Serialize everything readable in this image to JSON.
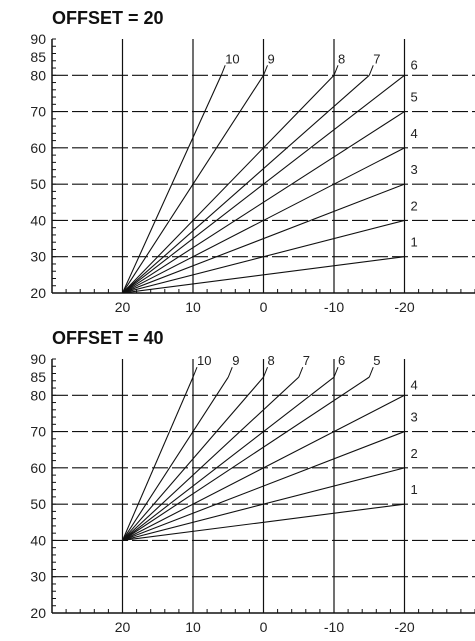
{
  "charts": [
    {
      "type": "line",
      "title": "OFFSET = 20",
      "y_ticks": [
        "90",
        "85",
        "80",
        "70",
        "60",
        "50",
        "40",
        "30",
        "20"
      ],
      "y_tick_values": [
        90,
        85,
        80,
        70,
        60,
        50,
        40,
        30,
        20
      ],
      "x_ticks": [
        "20",
        "10",
        "0",
        "-10",
        "-20"
      ],
      "x_tick_values": [
        20,
        10,
        0,
        -10,
        -20
      ],
      "xlim": [
        30,
        -30
      ],
      "ylim": [
        20,
        90
      ],
      "origin": {
        "x": 20,
        "y": 20
      },
      "series": [
        {
          "label": "1",
          "x": [
            20,
            -20
          ],
          "y": [
            20,
            30
          ]
        },
        {
          "label": "2",
          "x": [
            20,
            -20
          ],
          "y": [
            20,
            40
          ]
        },
        {
          "label": "3",
          "x": [
            20,
            -20
          ],
          "y": [
            20,
            50
          ]
        },
        {
          "label": "4",
          "x": [
            20,
            -20
          ],
          "y": [
            20,
            60
          ]
        },
        {
          "label": "5",
          "x": [
            20,
            -20
          ],
          "y": [
            20,
            70
          ]
        },
        {
          "label": "6",
          "x": [
            20,
            -20
          ],
          "y": [
            20,
            80
          ]
        },
        {
          "label": "7",
          "x": [
            20,
            -15
          ],
          "y": [
            20,
            80
          ]
        },
        {
          "label": "8",
          "x": [
            20,
            -10
          ],
          "y": [
            20,
            80
          ]
        },
        {
          "label": "9",
          "x": [
            20,
            0
          ],
          "y": [
            20,
            80
          ]
        },
        {
          "label": "10",
          "x": [
            20,
            6
          ],
          "y": [
            20,
            80
          ]
        }
      ]
    },
    {
      "type": "line",
      "title": "OFFSET = 40",
      "y_ticks": [
        "90",
        "85",
        "80",
        "70",
        "60",
        "50",
        "40",
        "30",
        "20"
      ],
      "y_tick_values": [
        90,
        85,
        80,
        70,
        60,
        50,
        40,
        30,
        20
      ],
      "x_ticks": [
        "20",
        "10",
        "0",
        "-10",
        "-20"
      ],
      "x_tick_values": [
        20,
        10,
        0,
        -10,
        -20
      ],
      "xlim": [
        30,
        -30
      ],
      "ylim": [
        20,
        90
      ],
      "origin": {
        "x": 20,
        "y": 40
      },
      "series": [
        {
          "label": "1",
          "x": [
            20,
            -20
          ],
          "y": [
            40,
            50
          ]
        },
        {
          "label": "2",
          "x": [
            20,
            -20
          ],
          "y": [
            40,
            60
          ]
        },
        {
          "label": "3",
          "x": [
            20,
            -20
          ],
          "y": [
            40,
            70
          ]
        },
        {
          "label": "4",
          "x": [
            20,
            -20
          ],
          "y": [
            40,
            80
          ]
        },
        {
          "label": "5",
          "x": [
            20,
            -15
          ],
          "y": [
            40,
            85
          ]
        },
        {
          "label": "6",
          "x": [
            20,
            -10
          ],
          "y": [
            40,
            85
          ]
        },
        {
          "label": "7",
          "x": [
            20,
            -5
          ],
          "y": [
            40,
            85
          ]
        },
        {
          "label": "8",
          "x": [
            20,
            0
          ],
          "y": [
            40,
            85
          ]
        },
        {
          "label": "9",
          "x": [
            20,
            5
          ],
          "y": [
            40,
            85
          ]
        },
        {
          "label": "10",
          "x": [
            20,
            10
          ],
          "y": [
            40,
            85
          ]
        }
      ]
    }
  ]
}
